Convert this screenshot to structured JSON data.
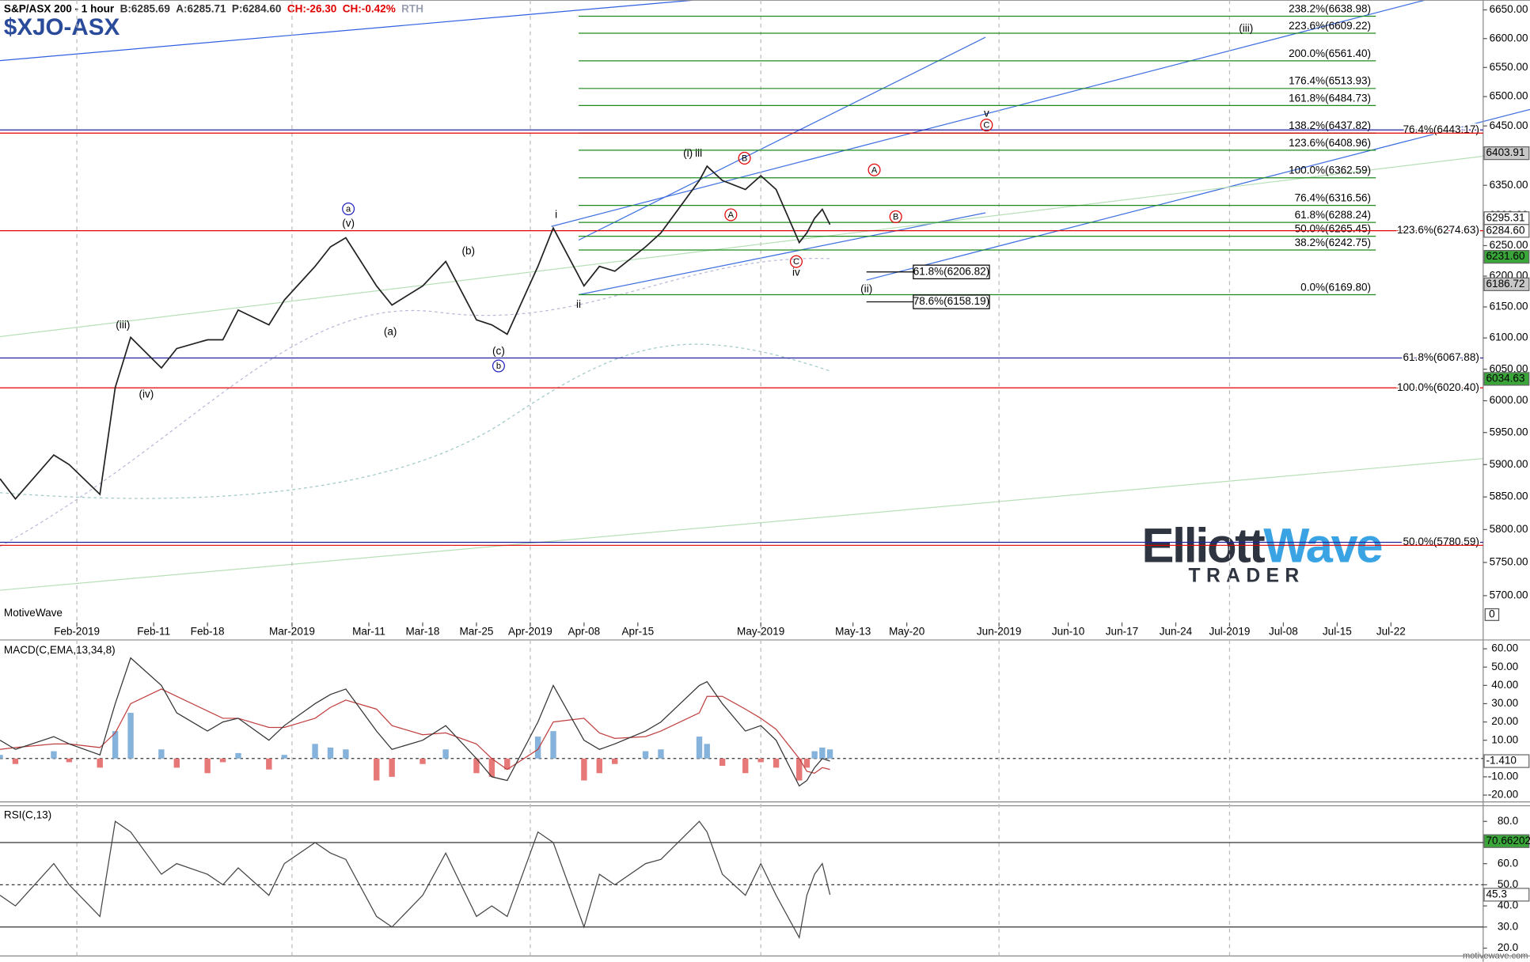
{
  "chart_data": [
    {
      "type": "line",
      "title": "S&P/ASX 200 - 1 hour",
      "symbol": "$XJO-ASX",
      "quote": [
        {
          "text": "B:6285.69",
          "color": "#333333"
        },
        {
          "text": "A:6285.71",
          "color": "#333333"
        },
        {
          "text": "P:6284.60",
          "color": "#333333"
        },
        {
          "text": "CH:-26.30",
          "color": "#e00000"
        },
        {
          "text": "CH:-0.42%",
          "color": "#e00000"
        },
        {
          "text": "RTH",
          "color": "#9aa0b0"
        }
      ],
      "watermark": "MotiveWave",
      "credit": "motivewave.com",
      "scale_button": "0",
      "logo": {
        "word1": "Elliott",
        "word2": "Wave",
        "tagline": "TRADER"
      },
      "color": "#222222",
      "log_scale": true,
      "x": [
        "2019-01-22",
        "2019-01-24",
        "2019-01-29",
        "2019-01-31",
        "2019-02-04",
        "2019-02-06",
        "2019-02-08",
        "2019-02-12",
        "2019-02-14",
        "2019-02-18",
        "2019-02-20",
        "2019-02-22",
        "2019-02-26",
        "2019-02-28",
        "2019-03-04",
        "2019-03-06",
        "2019-03-08",
        "2019-03-12",
        "2019-03-14",
        "2019-03-18",
        "2019-03-21",
        "2019-03-25",
        "2019-03-27",
        "2019-03-29",
        "2019-04-02",
        "2019-04-04",
        "2019-04-08",
        "2019-04-10",
        "2019-04-12",
        "2019-04-16",
        "2019-04-18",
        "2019-04-23",
        "2019-04-24",
        "2019-04-26",
        "2019-04-29",
        "2019-05-01",
        "2019-05-03",
        "2019-05-06",
        "2019-05-07",
        "2019-05-08",
        "2019-05-09",
        "2019-05-10"
      ],
      "values": [
        5878,
        5847,
        5915,
        5900,
        5854,
        6021,
        6101,
        6052,
        6083,
        6097,
        6097,
        6145,
        6121,
        6161,
        6216,
        6248,
        6263,
        6184,
        6153,
        6184,
        6224,
        6129,
        6121,
        6106,
        6216,
        6279,
        6184,
        6216,
        6208,
        6248,
        6271,
        6358,
        6382,
        6358,
        6343,
        6366,
        6343,
        6255,
        6271,
        6295,
        6310,
        6284.6
      ],
      "xlim": [
        "2019-01-22",
        "2019-08-03"
      ],
      "xticks": [
        {
          "value": "2019-02-01",
          "label": "Feb-2019",
          "grid": true
        },
        {
          "value": "2019-02-11",
          "label": "Feb-11"
        },
        {
          "value": "2019-02-18",
          "label": "Feb-18"
        },
        {
          "value": "2019-03-01",
          "label": "Mar-2019",
          "grid": true
        },
        {
          "value": "2019-03-11",
          "label": "Mar-11"
        },
        {
          "value": "2019-03-18",
          "label": "Mar-18"
        },
        {
          "value": "2019-03-25",
          "label": "Mar-25"
        },
        {
          "value": "2019-04-01",
          "label": "Apr-2019",
          "grid": true
        },
        {
          "value": "2019-04-08",
          "label": "Apr-08"
        },
        {
          "value": "2019-04-15",
          "label": "Apr-15"
        },
        {
          "value": "2019-05-01",
          "label": "May-2019",
          "grid": true
        },
        {
          "value": "2019-05-13",
          "label": "May-13"
        },
        {
          "value": "2019-05-20",
          "label": "May-20"
        },
        {
          "value": "2019-06-01",
          "label": "Jun-2019",
          "grid": true
        },
        {
          "value": "2019-06-10",
          "label": "Jun-10"
        },
        {
          "value": "2019-06-17",
          "label": "Jun-17"
        },
        {
          "value": "2019-06-24",
          "label": "Jun-24"
        },
        {
          "value": "2019-07-01",
          "label": "Jul-2019",
          "grid": true
        },
        {
          "value": "2019-07-08",
          "label": "Jul-08"
        },
        {
          "value": "2019-07-15",
          "label": "Jul-15"
        },
        {
          "value": "2019-07-22",
          "label": "Jul-22"
        }
      ],
      "ylim": [
        5660,
        6667
      ],
      "yticks": [
        {
          "value": 6650,
          "label": "6650.00"
        },
        {
          "value": 6600,
          "label": "6600.00"
        },
        {
          "value": 6550,
          "label": "6550.00"
        },
        {
          "value": 6500,
          "label": "6500.00"
        },
        {
          "value": 6450,
          "label": "6450.00"
        },
        {
          "value": 6400,
          "label": "6400.00"
        },
        {
          "value": 6350,
          "label": "6350.00"
        },
        {
          "value": 6300,
          "label": "6300.00"
        },
        {
          "value": 6250,
          "label": "6250.00"
        },
        {
          "value": 6200,
          "label": "6200.00"
        },
        {
          "value": 6150,
          "label": "6150.00"
        },
        {
          "value": 6100,
          "label": "6100.00"
        },
        {
          "value": 6050,
          "label": "6050.00"
        },
        {
          "value": 6000,
          "label": "6000.00"
        },
        {
          "value": 5950,
          "label": "5950.00"
        },
        {
          "value": 5900,
          "label": "5900.00"
        },
        {
          "value": 5850,
          "label": "5850.00"
        },
        {
          "value": 5800,
          "label": "5800.00"
        },
        {
          "value": 5750,
          "label": "5750.00"
        },
        {
          "value": 5700,
          "label": "5700.00"
        }
      ],
      "axis_labels": [
        {
          "value": 6403.91,
          "label": "6403.91",
          "color": "#c8c8c8"
        },
        {
          "value": 6295.31,
          "label": "6295.31",
          "color": "#ffffff"
        },
        {
          "value": 6284.6,
          "label": "6284.60",
          "color": "#ffffff"
        },
        {
          "value": 6231.6,
          "label": "6231.60",
          "color": "#3aa63a"
        },
        {
          "value": 6186.72,
          "label": "6186.72",
          "color": "#c8c8c8"
        },
        {
          "value": 6034.63,
          "label": "6034.63",
          "color": "#3aa63a"
        }
      ],
      "levels": [
        {
          "label": "238.2%(6638.98)",
          "value": 6638.98,
          "color": "#1e8a1e",
          "span": "fib"
        },
        {
          "label": "223.6%(6609.22)",
          "value": 6609.22,
          "color": "#1e8a1e",
          "span": "fib"
        },
        {
          "label": "200.0%(6561.40)",
          "value": 6561.4,
          "color": "#1e8a1e",
          "span": "fib"
        },
        {
          "label": "176.4%(6513.93)",
          "value": 6513.93,
          "color": "#1e8a1e",
          "span": "fib"
        },
        {
          "label": "161.8%(6484.73)",
          "value": 6484.73,
          "color": "#1e8a1e",
          "span": "fib"
        },
        {
          "label": "138.2%(6437.82)",
          "value": 6437.82,
          "color": "#1e8a1e",
          "span": "fib"
        },
        {
          "label": "123.6%(6408.96)",
          "value": 6408.96,
          "color": "#1e8a1e",
          "span": "fib"
        },
        {
          "label": "100.0%(6362.59)",
          "value": 6362.59,
          "color": "#1e8a1e",
          "span": "fib"
        },
        {
          "label": "76.4%(6316.56)",
          "value": 6316.56,
          "color": "#1e8a1e",
          "span": "fib"
        },
        {
          "label": "61.8%(6288.24)",
          "value": 6288.24,
          "color": "#1e8a1e",
          "span": "fib"
        },
        {
          "label": "50.0%(6265.45)",
          "value": 6265.45,
          "color": "#1e8a1e",
          "span": "fib"
        },
        {
          "label": "38.2%(6242.75)",
          "value": 6242.75,
          "color": "#1e8a1e",
          "span": "fib"
        },
        {
          "label": "0.0%(6169.80)",
          "value": 6169.8,
          "color": "#1e8a1e",
          "span": "fib"
        },
        {
          "label": "76.4%(6443.17)",
          "value": 6443.17,
          "color": "#2020a0",
          "span": "full"
        },
        {
          "value": 6437.82,
          "color": "#e00000",
          "span": "full"
        },
        {
          "label": "123.6%(6274.63)",
          "value": 6274.63,
          "color": "#e00000",
          "span": "full"
        },
        {
          "label": "61.8%(6067.88)",
          "value": 6067.88,
          "color": "#2020a0",
          "span": "full"
        },
        {
          "label": "100.0%(6020.40)",
          "value": 6020.4,
          "color": "#e00000",
          "span": "full"
        },
        {
          "label": "50.0%(5780.59)",
          "value": 5780.59,
          "color": "#2020a0",
          "span": "full"
        },
        {
          "value": 5776,
          "color": "#e00000",
          "span": "full"
        },
        {
          "label": "61.8%(6206.82)",
          "value": 6206.82,
          "color": "#000000",
          "span": "box"
        },
        {
          "label": "78.6%(6158.19)",
          "value": 6158.19,
          "color": "#000000",
          "span": "box"
        }
      ],
      "annotations": [
        {
          "text": "(iii)",
          "color": "#2020c0"
        },
        {
          "text": "(iv)",
          "color": "#2020c0"
        },
        {
          "text": "(v)",
          "color": "#2020c0"
        },
        {
          "text": "a",
          "color": "#2020c0",
          "circled": true
        },
        {
          "text": "(a)",
          "color": "#2020c0"
        },
        {
          "text": "(b)",
          "color": "#2020c0"
        },
        {
          "text": "(c)",
          "color": "#2020c0"
        },
        {
          "text": "b",
          "color": "#2020c0",
          "circled": true
        },
        {
          "text": "i",
          "color": "#e00000"
        },
        {
          "text": "ii",
          "color": "#e00000"
        },
        {
          "text": "(i)",
          "color": "#2020c0"
        },
        {
          "text": "iii",
          "color": "#e00000"
        },
        {
          "text": "B",
          "color": "#e00000",
          "circled": true
        },
        {
          "text": "A",
          "color": "#e00000",
          "circled": true
        },
        {
          "text": "iv",
          "color": "#e00000"
        },
        {
          "text": "C",
          "color": "#e00000",
          "circled": true
        },
        {
          "text": "v",
          "color": "#e00000"
        },
        {
          "text": "C",
          "color": "#e00000",
          "circled": true
        },
        {
          "text": "A",
          "color": "#e00000",
          "circled": true
        },
        {
          "text": "B",
          "color": "#e00000",
          "circled": true
        },
        {
          "text": "(ii)",
          "color": "#2020c0"
        },
        {
          "text": "(iii)",
          "color": "#2020c0"
        }
      ]
    },
    {
      "type": "line",
      "title": "MACD(C,EMA,13,34,8)",
      "ylim": [
        -23.7,
        64.3
      ],
      "yticks": [
        {
          "value": 60,
          "label": "60.00"
        },
        {
          "value": 50,
          "label": "50.00"
        },
        {
          "value": 40,
          "label": "40.00"
        },
        {
          "value": 30,
          "label": "30.00"
        },
        {
          "value": 20,
          "label": "20.00"
        },
        {
          "value": 10,
          "label": "10.00"
        },
        {
          "value": -10,
          "label": "-10.00"
        },
        {
          "value": -20,
          "label": "-20.00"
        }
      ],
      "axis_labels": [
        {
          "value": -1.41,
          "label": "-1.410",
          "color": "#ffffff"
        }
      ],
      "series": [
        {
          "kind": "histogram",
          "color": "#86b3dc",
          "negative_color": "#e67878",
          "values": [
            2,
            -3,
            4,
            -2,
            -5,
            15,
            25,
            5,
            -5,
            -8,
            -2,
            3,
            -6,
            2,
            8,
            6,
            5,
            -12,
            -10,
            -3,
            5,
            -8,
            -10,
            -6,
            12,
            15,
            -12,
            -8,
            -3,
            4,
            5,
            12,
            8,
            -4,
            -8,
            -2,
            -5,
            -12,
            -5,
            4,
            6,
            5
          ]
        },
        {
          "kind": "line",
          "color": "#c04040",
          "values": [
            5,
            6,
            8,
            8,
            6,
            14,
            30,
            38,
            34,
            26,
            22,
            22,
            17,
            17,
            22,
            28,
            32,
            27,
            18,
            13,
            14,
            8,
            0,
            -6,
            5,
            20,
            22,
            14,
            11,
            12,
            15,
            25,
            34,
            34,
            27,
            22,
            16,
            0,
            -7,
            -8,
            -5,
            -6
          ]
        },
        {
          "kind": "line",
          "color": "#333333",
          "values": [
            10,
            5,
            12,
            8,
            2,
            30,
            55,
            40,
            25,
            15,
            20,
            22,
            10,
            18,
            30,
            35,
            38,
            15,
            5,
            10,
            18,
            0,
            -10,
            -12,
            20,
            40,
            10,
            5,
            8,
            15,
            20,
            40,
            42,
            30,
            15,
            18,
            10,
            -15,
            -12,
            -5,
            0,
            -1.41
          ]
        }
      ]
    },
    {
      "type": "line",
      "title": "RSI(C,13)",
      "ylim": [
        16.3,
        87.4
      ],
      "yticks": [
        {
          "value": 80,
          "label": "80.0"
        },
        {
          "value": 70,
          "label": "70.0"
        },
        {
          "value": 60,
          "label": "60.0"
        },
        {
          "value": 50,
          "label": "50.0"
        },
        {
          "value": 40,
          "label": "40.0"
        },
        {
          "value": 30,
          "label": "30.0"
        },
        {
          "value": 20,
          "label": "20.0"
        }
      ],
      "bands": [
        {
          "value": 70
        },
        {
          "value": 50,
          "dashed": true
        },
        {
          "value": 30
        }
      ],
      "axis_labels": [
        {
          "value": 70.66202,
          "label": "70.66202",
          "color": "#3aa63a"
        },
        {
          "value": 45.3,
          "label": "45.3",
          "color": "#ffffff"
        }
      ],
      "series": [
        {
          "kind": "line",
          "color": "#444444",
          "values": [
            45,
            40,
            60,
            50,
            35,
            80,
            75,
            55,
            60,
            55,
            50,
            58,
            45,
            60,
            70,
            65,
            62,
            35,
            30,
            45,
            65,
            35,
            40,
            35,
            75,
            70,
            30,
            55,
            50,
            60,
            62,
            80,
            75,
            55,
            45,
            60,
            45,
            25,
            45,
            55,
            60,
            45.3
          ]
        }
      ]
    }
  ]
}
